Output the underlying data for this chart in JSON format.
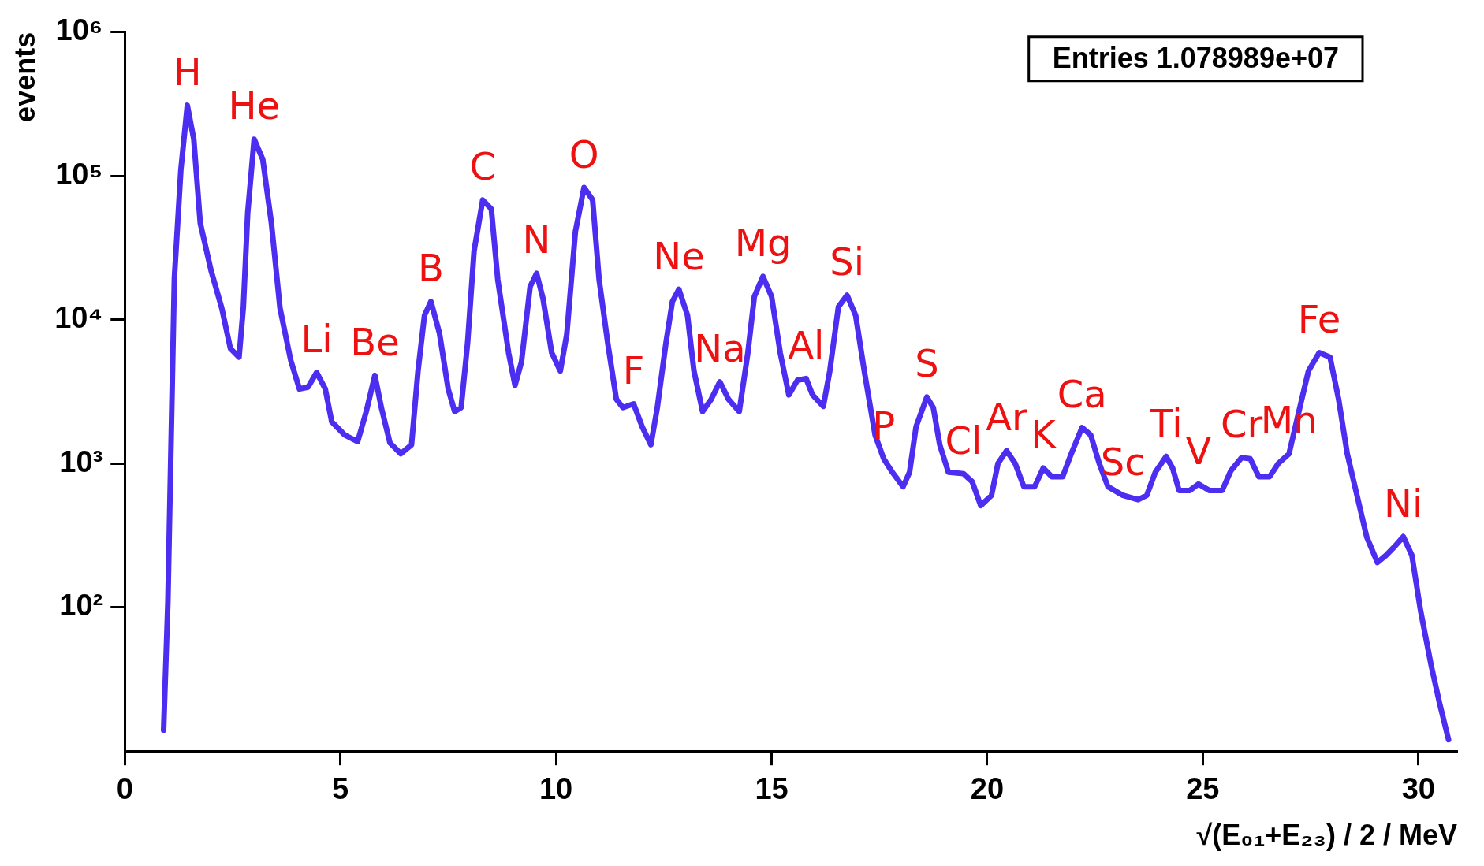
{
  "chart_data": {
    "type": "line",
    "xlabel": "√(E₀₁+E₂₃) / 2 / MeV",
    "ylabel": "events",
    "log": "y",
    "grid": false,
    "legend": false,
    "marker": "none",
    "line_style": "solid",
    "xlim": [
      0,
      30.9
    ],
    "xticks": [
      0,
      5,
      10,
      15,
      20,
      25,
      30
    ],
    "ylim": [
      10,
      1000000
    ],
    "yticks": [
      {
        "value": 100,
        "label": "10²"
      },
      {
        "value": 1000,
        "label": "10³"
      },
      {
        "value": 10000,
        "label": "10⁴"
      },
      {
        "value": 100000,
        "label": "10⁵"
      },
      {
        "value": 1000000,
        "label": "10⁶"
      }
    ],
    "series": [
      {
        "color": "#4b2ef0",
        "x": [
          0.9,
          1.0,
          1.15,
          1.3,
          1.45,
          1.6,
          1.75,
          2.0,
          2.25,
          2.45,
          2.65,
          2.75,
          2.85,
          3.0,
          3.2,
          3.4,
          3.6,
          3.85,
          4.05,
          4.25,
          4.45,
          4.65,
          4.8,
          5.1,
          5.4,
          5.6,
          5.8,
          5.95,
          6.15,
          6.4,
          6.65,
          6.8,
          6.95,
          7.1,
          7.3,
          7.5,
          7.65,
          7.8,
          7.95,
          8.1,
          8.3,
          8.5,
          8.65,
          8.9,
          9.05,
          9.2,
          9.4,
          9.55,
          9.7,
          9.9,
          10.1,
          10.25,
          10.45,
          10.65,
          10.85,
          11.0,
          11.2,
          11.4,
          11.55,
          11.8,
          12.0,
          12.2,
          12.35,
          12.55,
          12.7,
          12.85,
          13.05,
          13.2,
          13.4,
          13.6,
          13.8,
          14.0,
          14.25,
          14.45,
          14.6,
          14.8,
          15.0,
          15.2,
          15.4,
          15.6,
          15.8,
          15.95,
          16.2,
          16.35,
          16.55,
          16.75,
          16.95,
          17.15,
          17.4,
          17.6,
          17.8,
          18.05,
          18.2,
          18.35,
          18.6,
          18.75,
          18.9,
          19.1,
          19.45,
          19.65,
          19.85,
          20.1,
          20.25,
          20.45,
          20.65,
          20.85,
          21.1,
          21.3,
          21.5,
          21.75,
          21.95,
          22.2,
          22.4,
          22.6,
          22.8,
          23.15,
          23.5,
          23.7,
          23.9,
          24.15,
          24.3,
          24.45,
          24.7,
          24.9,
          25.15,
          25.45,
          25.65,
          25.9,
          26.1,
          26.3,
          26.55,
          26.75,
          27.0,
          27.25,
          27.45,
          27.7,
          27.95,
          28.15,
          28.35,
          28.6,
          28.8,
          29.05,
          29.25,
          29.45,
          29.65,
          29.85,
          30.05,
          30.3,
          30.5,
          30.7
        ],
        "values": [
          14,
          110,
          19500,
          110000,
          310000,
          180000,
          47000,
          22000,
          12000,
          6300,
          5500,
          12300,
          55000,
          180000,
          130000,
          47000,
          12000,
          5200,
          3300,
          3400,
          4300,
          3300,
          1950,
          1580,
          1420,
          2300,
          4100,
          2450,
          1390,
          1170,
          1350,
          4400,
          10700,
          13400,
          8000,
          3300,
          2300,
          2450,
          6900,
          30000,
          68000,
          59000,
          19000,
          5900,
          3500,
          5100,
          17000,
          21000,
          14000,
          5900,
          4400,
          7900,
          41000,
          83000,
          68000,
          19000,
          6900,
          2800,
          2450,
          2600,
          1800,
          1350,
          2450,
          6900,
          13400,
          16300,
          10700,
          4400,
          2300,
          2800,
          3700,
          2800,
          2300,
          5900,
          14500,
          20000,
          14500,
          5900,
          3000,
          3800,
          3900,
          3000,
          2500,
          4400,
          12300,
          14800,
          10700,
          4400,
          1580,
          1080,
          870,
          690,
          870,
          1800,
          2900,
          2450,
          1350,
          870,
          850,
          750,
          510,
          600,
          1000,
          1230,
          1000,
          690,
          690,
          930,
          810,
          810,
          1170,
          1780,
          1580,
          1000,
          690,
          600,
          560,
          600,
          870,
          1120,
          930,
          650,
          650,
          720,
          650,
          650,
          890,
          1100,
          1080,
          810,
          810,
          1000,
          1170,
          2450,
          4400,
          5900,
          5500,
          2800,
          1170,
          560,
          310,
          205,
          230,
          265,
          310,
          230,
          95,
          39,
          21,
          12
        ]
      }
    ],
    "annotations": [
      "Entries 1.078989e+07",
      {
        "text": "H",
        "x": 1.45,
        "y": 310000
      },
      {
        "text": "He",
        "x": 3.0,
        "y": 180000
      },
      {
        "text": "Li",
        "x": 4.45,
        "y": 4300
      },
      {
        "text": "Be",
        "x": 5.8,
        "y": 4100
      },
      {
        "text": "B",
        "x": 7.1,
        "y": 13400
      },
      {
        "text": "C",
        "x": 8.3,
        "y": 68000
      },
      {
        "text": "N",
        "x": 9.55,
        "y": 21000
      },
      {
        "text": "O",
        "x": 10.65,
        "y": 83000
      },
      {
        "text": "F",
        "x": 11.8,
        "y": 2600
      },
      {
        "text": "Ne",
        "x": 12.85,
        "y": 16300
      },
      {
        "text": "Na",
        "x": 13.8,
        "y": 3700
      },
      {
        "text": "Mg",
        "x": 14.8,
        "y": 20000
      },
      {
        "text": "Al",
        "x": 15.8,
        "y": 3900
      },
      {
        "text": "Si",
        "x": 16.75,
        "y": 14800
      },
      {
        "text": "P",
        "x": 17.6,
        "y": 1080
      },
      {
        "text": "S",
        "x": 18.6,
        "y": 2900
      },
      {
        "text": "Cl",
        "x": 19.45,
        "y": 850
      },
      {
        "text": "Ar",
        "x": 20.45,
        "y": 1230
      },
      {
        "text": "K",
        "x": 21.3,
        "y": 930
      },
      {
        "text": "Ca",
        "x": 22.2,
        "y": 1780
      },
      {
        "text": "Sc",
        "x": 23.15,
        "y": 600
      },
      {
        "text": "Ti",
        "x": 24.15,
        "y": 1120
      },
      {
        "text": "V",
        "x": 24.9,
        "y": 720
      },
      {
        "text": "Cr",
        "x": 25.9,
        "y": 1100
      },
      {
        "text": "Mn",
        "x": 27.0,
        "y": 1170
      },
      {
        "text": "Fe",
        "x": 27.7,
        "y": 5900
      },
      {
        "text": "Ni",
        "x": 29.65,
        "y": 310
      }
    ]
  }
}
